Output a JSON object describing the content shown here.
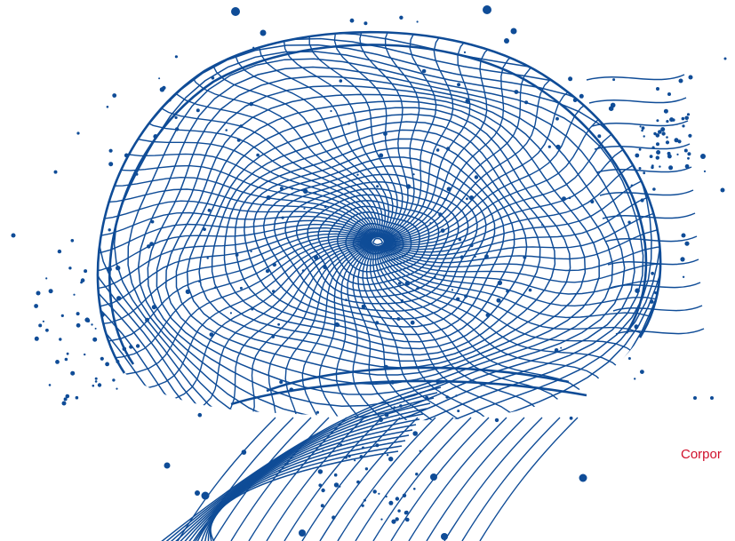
{
  "colors": {
    "mesh": "#0f4c97",
    "text_accent": "#d0102b",
    "background": "#ffffff"
  },
  "artwork": {
    "icon": "wireframe-mesh-vortex-icon"
  },
  "corner_text": {
    "label": "Corpor"
  }
}
